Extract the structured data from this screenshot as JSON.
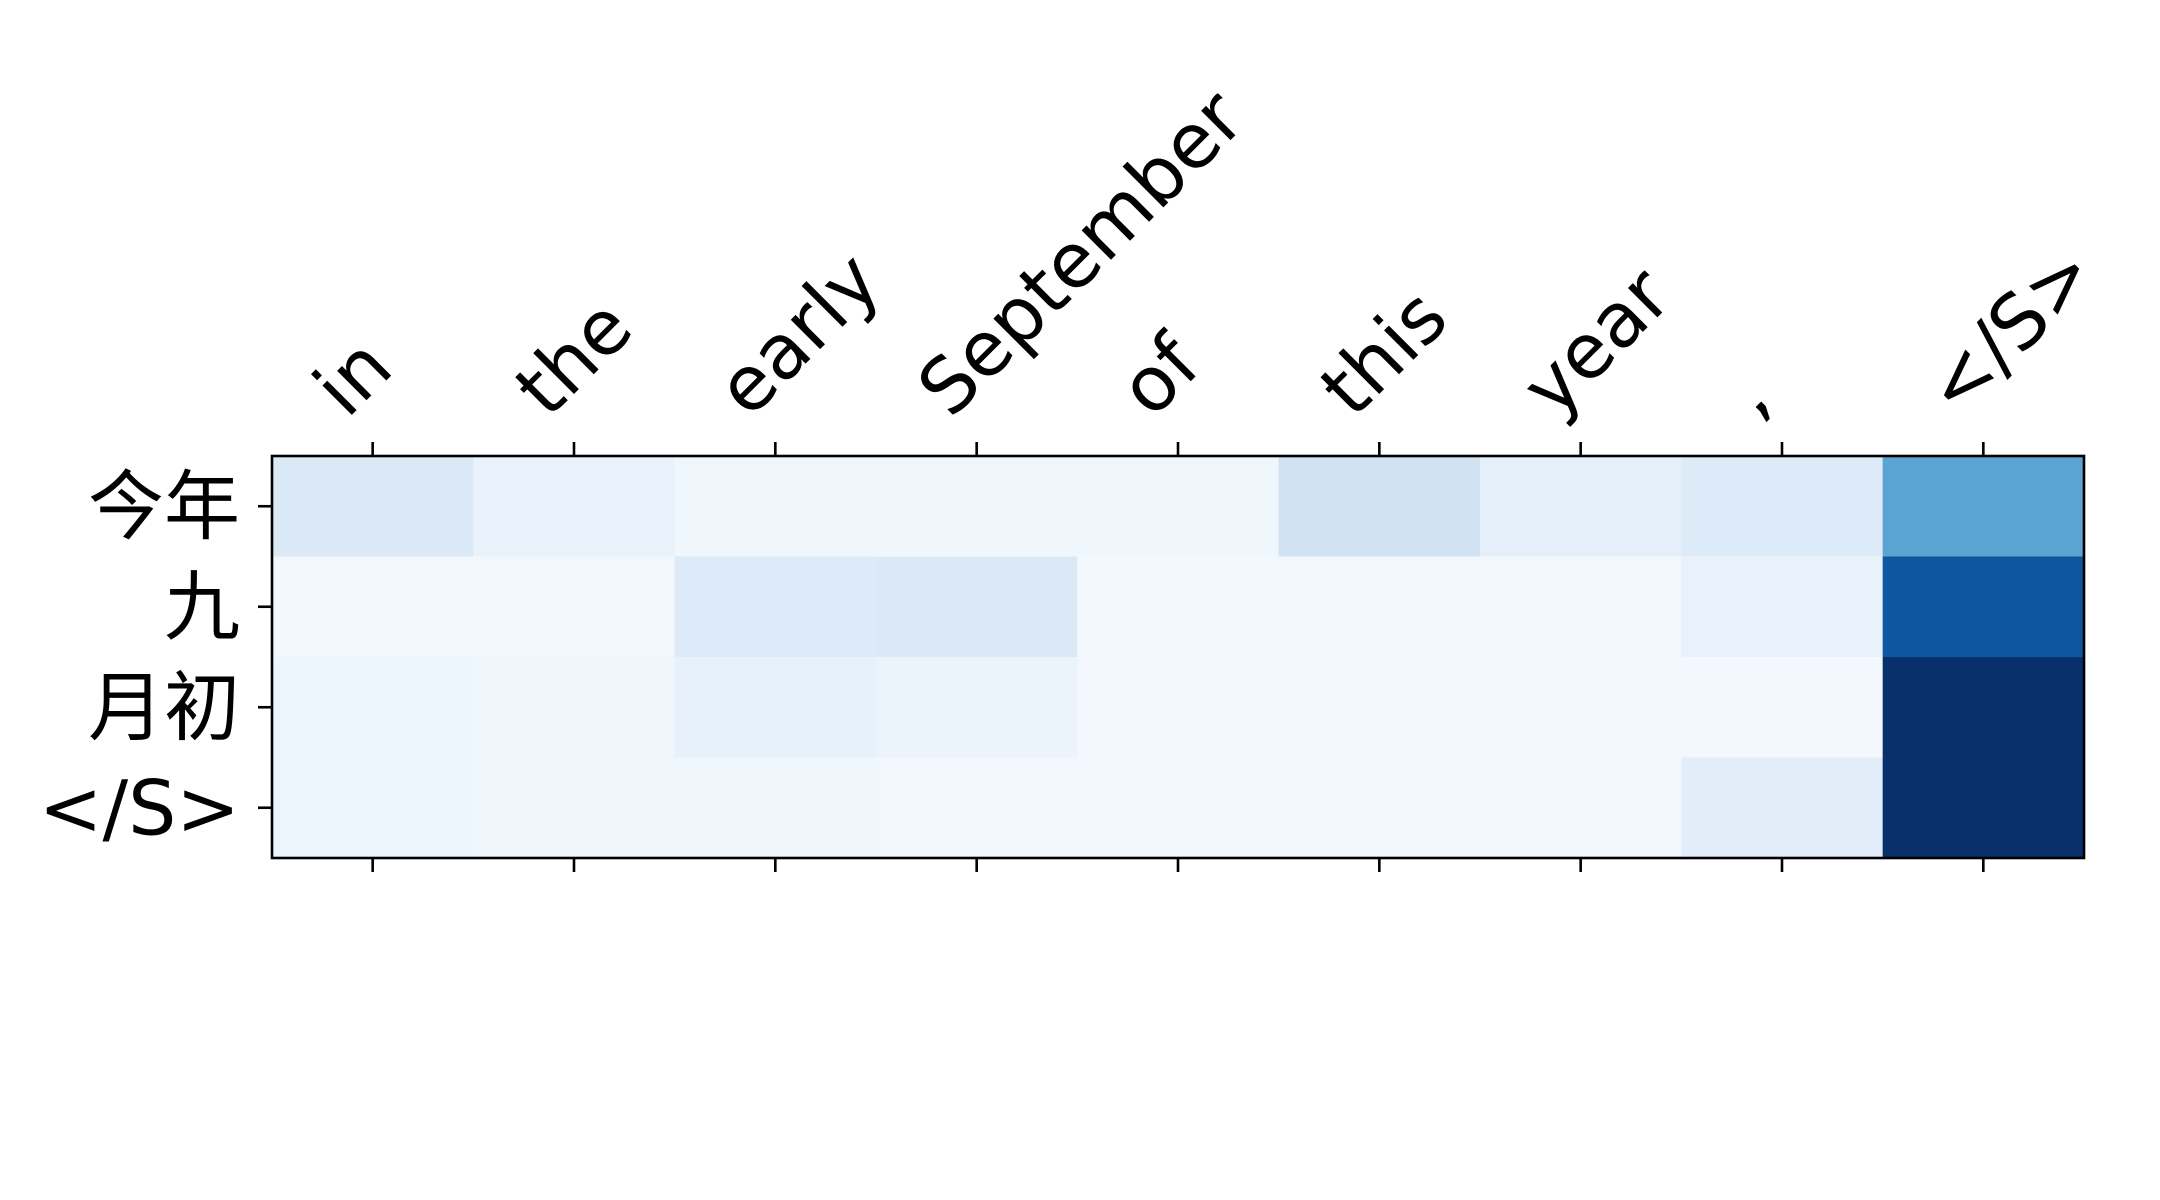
{
  "chart_data": {
    "type": "heatmap",
    "title": "",
    "xlabel": "",
    "ylabel": "",
    "x_tick_position": "top",
    "colormap": "Blues",
    "value_range": [
      0,
      1
    ],
    "grid": false,
    "legend": "none",
    "x_categories": [
      "in",
      "the",
      "early",
      "September",
      "of",
      "this",
      "year",
      ",",
      "</S>"
    ],
    "y_categories": [
      "今年",
      "九",
      "月初",
      "</S>"
    ],
    "values": [
      [
        0.14,
        0.07,
        0.04,
        0.04,
        0.04,
        0.2,
        0.09,
        0.13,
        0.55
      ],
      [
        0.03,
        0.03,
        0.13,
        0.14,
        0.02,
        0.03,
        0.03,
        0.07,
        0.85
      ],
      [
        0.05,
        0.04,
        0.08,
        0.06,
        0.02,
        0.02,
        0.03,
        0.02,
        1.0
      ],
      [
        0.05,
        0.04,
        0.04,
        0.03,
        0.02,
        0.02,
        0.02,
        0.11,
        1.0
      ]
    ]
  }
}
